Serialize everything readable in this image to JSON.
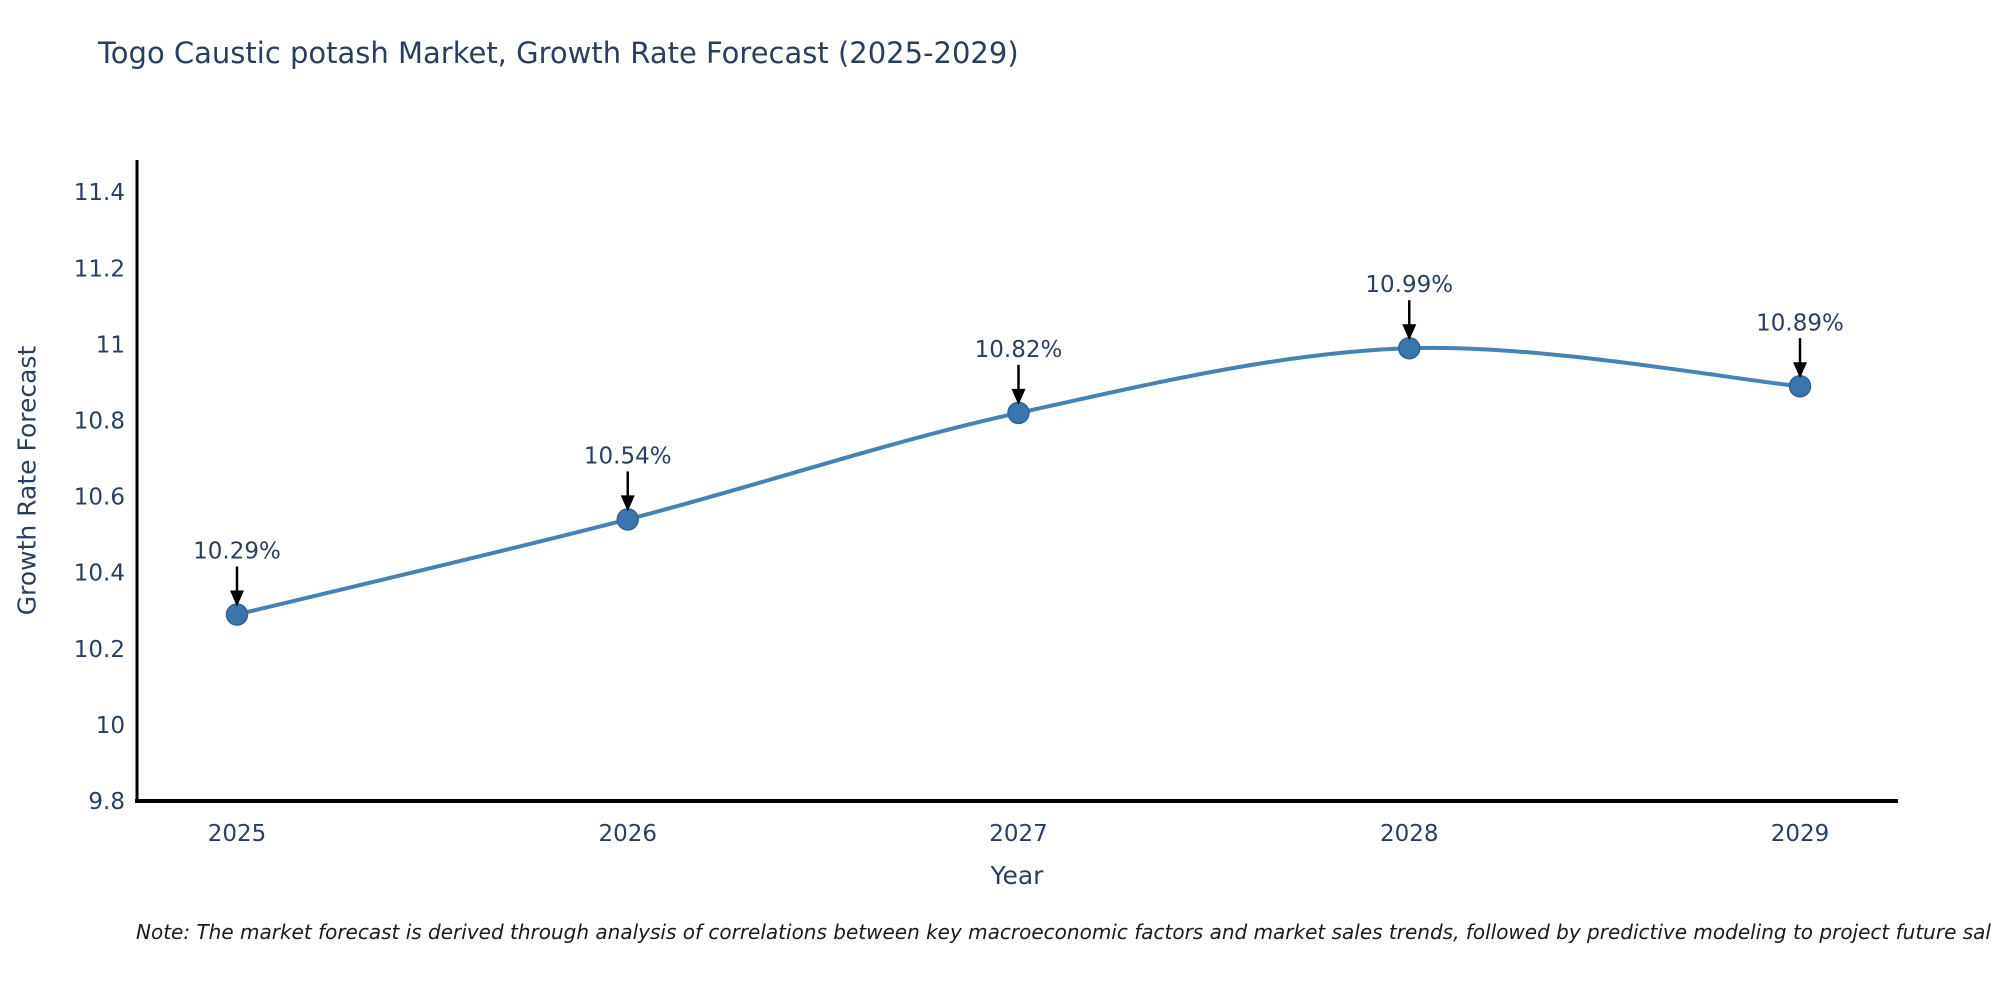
{
  "title": {
    "text": "Togo Caustic potash Market, Growth Rate Forecast (2025-2029)",
    "color": "#2a3f5f"
  },
  "note": {
    "text": "Note: The market forecast is derived through analysis of correlations between key macroeconomic factors and market sales trends, followed by predictive modeling to project future sal"
  },
  "chart_data": {
    "type": "line",
    "line_shape": "spline",
    "title": "Togo Caustic potash Market, Growth Rate Forecast (2025-2029)",
    "categories": [
      "2025",
      "2026",
      "2027",
      "2028",
      "2029"
    ],
    "series": [
      {
        "name": "Growth Rate Forecast",
        "values": [
          10.29,
          10.54,
          10.82,
          10.99,
          10.89
        ],
        "point_labels": [
          "10.29%",
          "10.54%",
          "10.82%",
          "10.99%",
          "10.89%"
        ]
      }
    ],
    "xlabel": "Year",
    "ylabel": "Growth Rate Forecast",
    "ylim": [
      9.8,
      11.4
    ],
    "ytick_values": [
      9.8,
      10,
      10.2,
      10.4,
      10.6,
      10.8,
      11,
      11.2,
      11.4
    ],
    "ytick_labels": [
      "9.8",
      "10",
      "10.2",
      "10.4",
      "10.6",
      "10.8",
      "11",
      "11.2",
      "11.4"
    ],
    "grid": false,
    "legend_visible": false,
    "annotations_have_arrows": true,
    "colors": {
      "line": "#4682b4",
      "marker_fill": "#3a76ad",
      "marker_edge": "#2f6496",
      "axis_line": "#000000",
      "tick_text": "#2a3f5f",
      "annotation_text": "#2a3f5f",
      "annotation_arrow": "#000000"
    }
  }
}
